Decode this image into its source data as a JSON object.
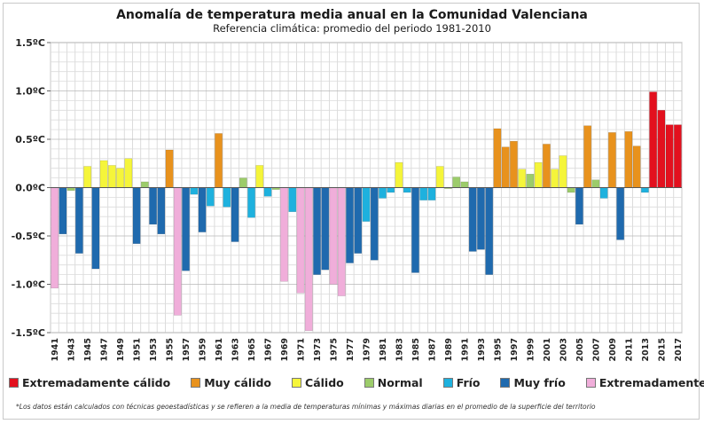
{
  "title": "Anomalía de temperatura media anual en la Comunidad Valenciana",
  "subtitle": "Referencia climática: promedio del periodo 1981-2010",
  "footnote": "*Los datos están calculados con técnicas geoestadísticas y se refieren a la media de temperaturas mínimas y máximas diarias en el promedio de la superficie del territorio",
  "colors": {
    "EC": "#e3101e",
    "MC": "#e8921d",
    "C": "#f5f53a",
    "N": "#9ccc6a",
    "F": "#1eb1de",
    "MF": "#1f6aae",
    "EF": "#f0aeda"
  },
  "legend": [
    {
      "key": "EC",
      "label": "Extremadamente cálido"
    },
    {
      "key": "MC",
      "label": "Muy cálido"
    },
    {
      "key": "C",
      "label": "Cálido"
    },
    {
      "key": "N",
      "label": "Normal"
    },
    {
      "key": "F",
      "label": "Frío"
    },
    {
      "key": "MF",
      "label": "Muy frío"
    },
    {
      "key": "EF",
      "label": "Extremadamente frío"
    }
  ],
  "chart_data": {
    "type": "bar",
    "ylim": [
      -1.5,
      1.5
    ],
    "yticks": [
      1.5,
      1.0,
      0.5,
      0.0,
      -0.5,
      -1.0,
      -1.5
    ],
    "ytick_labels": [
      "1.5ºC",
      "1.0ºC",
      "0.5ºC",
      "0.0ºC",
      "-0.5ºC",
      "-1.0ºC",
      "-1.5ºC"
    ],
    "xtick_labels": [
      "1941",
      "1943",
      "1945",
      "1947",
      "1949",
      "1951",
      "1953",
      "1955",
      "1957",
      "1959",
      "1961",
      "1963",
      "1965",
      "1967",
      "1969",
      "1971",
      "1973",
      "1975",
      "1977",
      "1979",
      "1981",
      "1983",
      "1985",
      "1987",
      "1989",
      "1991",
      "1993",
      "1995",
      "1997",
      "1999",
      "2001",
      "2003",
      "2005",
      "2007",
      "2009",
      "2011",
      "2013",
      "2015",
      "2017"
    ],
    "categories": [
      1941,
      1942,
      1943,
      1944,
      1945,
      1946,
      1947,
      1948,
      1949,
      1950,
      1951,
      1952,
      1953,
      1954,
      1955,
      1956,
      1957,
      1958,
      1959,
      1960,
      1961,
      1962,
      1963,
      1964,
      1965,
      1966,
      1967,
      1968,
      1969,
      1970,
      1971,
      1972,
      1973,
      1974,
      1975,
      1976,
      1977,
      1978,
      1979,
      1980,
      1981,
      1982,
      1983,
      1984,
      1985,
      1986,
      1987,
      1988,
      1989,
      1990,
      1991,
      1992,
      1993,
      1994,
      1995,
      1996,
      1997,
      1998,
      1999,
      2000,
      2001,
      2002,
      2003,
      2004,
      2005,
      2006,
      2007,
      2008,
      2009,
      2010,
      2011,
      2012,
      2013,
      2014,
      2015,
      2016,
      2017
    ],
    "values": [
      -1.04,
      -0.48,
      -0.03,
      -0.68,
      0.22,
      -0.84,
      0.28,
      0.23,
      0.2,
      0.3,
      -0.58,
      0.06,
      -0.38,
      -0.48,
      0.39,
      -1.32,
      -0.86,
      -0.07,
      -0.46,
      -0.19,
      0.56,
      -0.2,
      -0.56,
      0.1,
      -0.31,
      0.23,
      -0.09,
      -0.02,
      -0.97,
      -0.25,
      -1.09,
      -1.48,
      -0.9,
      -0.85,
      -1.0,
      -1.12,
      -0.78,
      -0.68,
      -0.35,
      -0.75,
      -0.11,
      -0.05,
      0.26,
      -0.05,
      -0.88,
      -0.13,
      -0.13,
      0.22,
      -0.01,
      0.11,
      0.06,
      -0.66,
      -0.64,
      -0.9,
      0.61,
      0.42,
      0.48,
      0.19,
      0.14,
      0.26,
      0.45,
      0.19,
      0.33,
      -0.05,
      -0.38,
      0.64,
      0.08,
      -0.11,
      0.57,
      -0.54,
      0.58,
      0.43,
      -0.05,
      0.99,
      0.8,
      0.65,
      0.65
    ],
    "classes": [
      "EF",
      "MF",
      "N",
      "MF",
      "C",
      "MF",
      "C",
      "C",
      "C",
      "C",
      "MF",
      "N",
      "MF",
      "MF",
      "MC",
      "EF",
      "MF",
      "F",
      "MF",
      "F",
      "MC",
      "F",
      "MF",
      "N",
      "F",
      "C",
      "F",
      "N",
      "EF",
      "F",
      "EF",
      "EF",
      "MF",
      "MF",
      "EF",
      "EF",
      "MF",
      "MF",
      "F",
      "MF",
      "F",
      "F",
      "C",
      "F",
      "MF",
      "F",
      "F",
      "C",
      "N",
      "N",
      "N",
      "MF",
      "MF",
      "MF",
      "MC",
      "MC",
      "MC",
      "C",
      "N",
      "C",
      "MC",
      "C",
      "C",
      "N",
      "MF",
      "MC",
      "N",
      "F",
      "MC",
      "MF",
      "MC",
      "MC",
      "F",
      "EC",
      "EC",
      "EC",
      "EC"
    ]
  }
}
